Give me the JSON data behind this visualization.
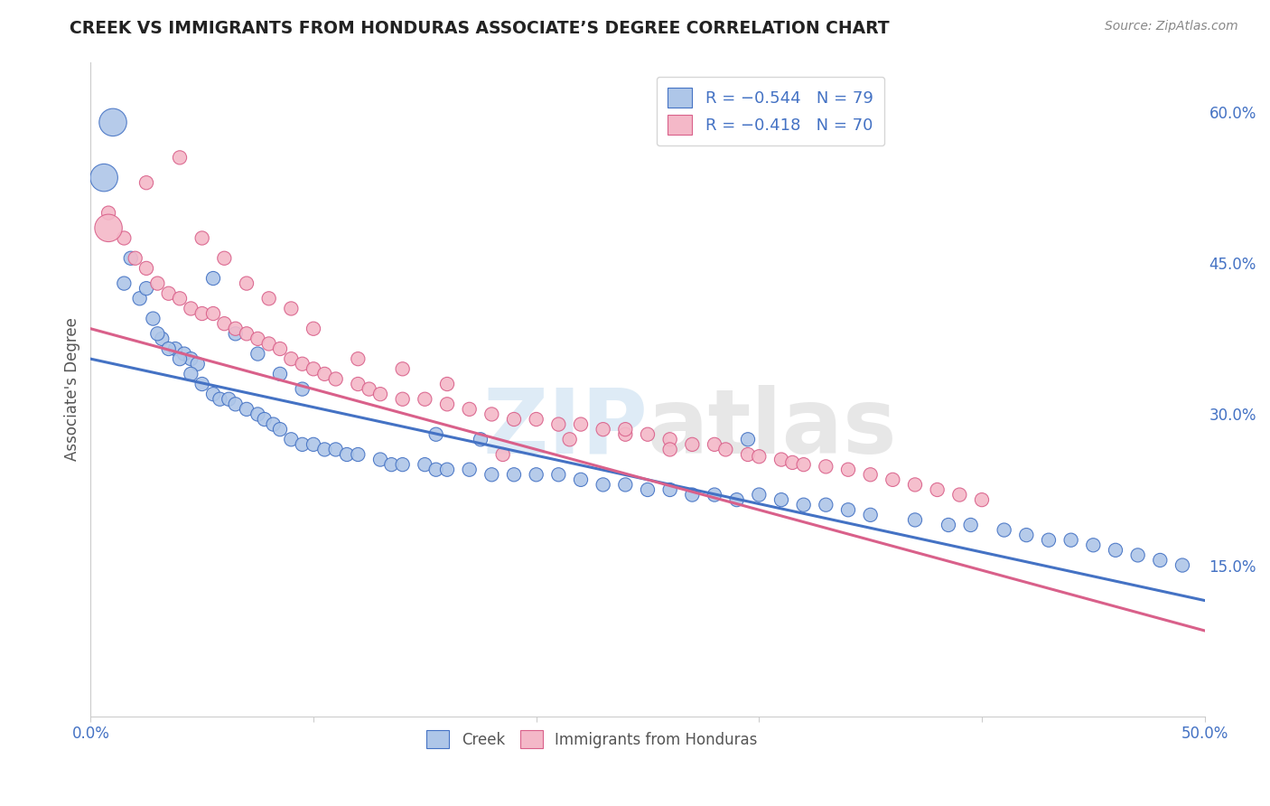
{
  "title": "CREEK VS IMMIGRANTS FROM HONDURAS ASSOCIATE’S DEGREE CORRELATION CHART",
  "source": "Source: ZipAtlas.com",
  "ylabel": "Associate's Degree",
  "xlim": [
    0.0,
    0.5
  ],
  "ylim": [
    0.0,
    0.65
  ],
  "xticks": [
    0.0,
    0.1,
    0.2,
    0.3,
    0.4,
    0.5
  ],
  "xticklabels": [
    "0.0%",
    "",
    "",
    "",
    "",
    "50.0%"
  ],
  "yticks_right": [
    0.15,
    0.3,
    0.45,
    0.6
  ],
  "ytick_labels_right": [
    "15.0%",
    "30.0%",
    "45.0%",
    "60.0%"
  ],
  "creek_color": "#aec6e8",
  "creek_line_color": "#4472c4",
  "honduras_color": "#f4b8c8",
  "honduras_line_color": "#d9608a",
  "legend_R_label1": "R = −0.544   N = 79",
  "legend_R_label2": "R = −0.418   N = 70",
  "watermark_zip": "ZIP",
  "watermark_atlas": "atlas",
  "background_color": "#ffffff",
  "grid_color": "#cccccc",
  "creek_x": [
    0.006,
    0.018,
    0.022,
    0.028,
    0.032,
    0.038,
    0.042,
    0.045,
    0.048,
    0.025,
    0.03,
    0.035,
    0.04,
    0.045,
    0.05,
    0.055,
    0.058,
    0.062,
    0.065,
    0.07,
    0.075,
    0.078,
    0.082,
    0.085,
    0.09,
    0.095,
    0.1,
    0.105,
    0.11,
    0.115,
    0.12,
    0.13,
    0.135,
    0.14,
    0.15,
    0.155,
    0.16,
    0.17,
    0.18,
    0.19,
    0.2,
    0.21,
    0.22,
    0.23,
    0.24,
    0.25,
    0.26,
    0.27,
    0.28,
    0.29,
    0.3,
    0.31,
    0.32,
    0.33,
    0.34,
    0.35,
    0.37,
    0.385,
    0.395,
    0.41,
    0.42,
    0.43,
    0.44,
    0.45,
    0.46,
    0.47,
    0.48,
    0.49,
    0.01,
    0.015,
    0.055,
    0.065,
    0.075,
    0.085,
    0.095,
    0.155,
    0.175,
    0.295
  ],
  "creek_y": [
    0.535,
    0.455,
    0.415,
    0.395,
    0.375,
    0.365,
    0.36,
    0.355,
    0.35,
    0.425,
    0.38,
    0.365,
    0.355,
    0.34,
    0.33,
    0.32,
    0.315,
    0.315,
    0.31,
    0.305,
    0.3,
    0.295,
    0.29,
    0.285,
    0.275,
    0.27,
    0.27,
    0.265,
    0.265,
    0.26,
    0.26,
    0.255,
    0.25,
    0.25,
    0.25,
    0.245,
    0.245,
    0.245,
    0.24,
    0.24,
    0.24,
    0.24,
    0.235,
    0.23,
    0.23,
    0.225,
    0.225,
    0.22,
    0.22,
    0.215,
    0.22,
    0.215,
    0.21,
    0.21,
    0.205,
    0.2,
    0.195,
    0.19,
    0.19,
    0.185,
    0.18,
    0.175,
    0.175,
    0.17,
    0.165,
    0.16,
    0.155,
    0.15,
    0.59,
    0.43,
    0.435,
    0.38,
    0.36,
    0.34,
    0.325,
    0.28,
    0.275,
    0.275
  ],
  "creek_large": [
    0,
    68
  ],
  "honduras_x": [
    0.008,
    0.015,
    0.02,
    0.025,
    0.03,
    0.035,
    0.04,
    0.045,
    0.05,
    0.055,
    0.06,
    0.065,
    0.07,
    0.075,
    0.08,
    0.085,
    0.09,
    0.095,
    0.1,
    0.105,
    0.11,
    0.12,
    0.125,
    0.13,
    0.14,
    0.15,
    0.16,
    0.17,
    0.18,
    0.19,
    0.2,
    0.21,
    0.22,
    0.23,
    0.24,
    0.25,
    0.26,
    0.27,
    0.28,
    0.285,
    0.295,
    0.3,
    0.31,
    0.315,
    0.32,
    0.33,
    0.34,
    0.35,
    0.36,
    0.37,
    0.38,
    0.39,
    0.4,
    0.008,
    0.025,
    0.04,
    0.05,
    0.06,
    0.07,
    0.08,
    0.09,
    0.1,
    0.12,
    0.14,
    0.16,
    0.185,
    0.215,
    0.24,
    0.26
  ],
  "honduras_y": [
    0.5,
    0.475,
    0.455,
    0.445,
    0.43,
    0.42,
    0.415,
    0.405,
    0.4,
    0.4,
    0.39,
    0.385,
    0.38,
    0.375,
    0.37,
    0.365,
    0.355,
    0.35,
    0.345,
    0.34,
    0.335,
    0.33,
    0.325,
    0.32,
    0.315,
    0.315,
    0.31,
    0.305,
    0.3,
    0.295,
    0.295,
    0.29,
    0.29,
    0.285,
    0.28,
    0.28,
    0.275,
    0.27,
    0.27,
    0.265,
    0.26,
    0.258,
    0.255,
    0.252,
    0.25,
    0.248,
    0.245,
    0.24,
    0.235,
    0.23,
    0.225,
    0.22,
    0.215,
    0.485,
    0.53,
    0.555,
    0.475,
    0.455,
    0.43,
    0.415,
    0.405,
    0.385,
    0.355,
    0.345,
    0.33,
    0.26,
    0.275,
    0.285,
    0.265
  ],
  "honduras_large": [
    53
  ],
  "dot_size": 120,
  "large_dot_size": 480,
  "creek_trend_x0": 0.0,
  "creek_trend_y0": 0.355,
  "creek_trend_x1": 0.5,
  "creek_trend_y1": 0.115,
  "honduras_trend_x0": 0.0,
  "honduras_trend_y0": 0.385,
  "honduras_trend_x1": 0.5,
  "honduras_trend_y1": 0.085
}
